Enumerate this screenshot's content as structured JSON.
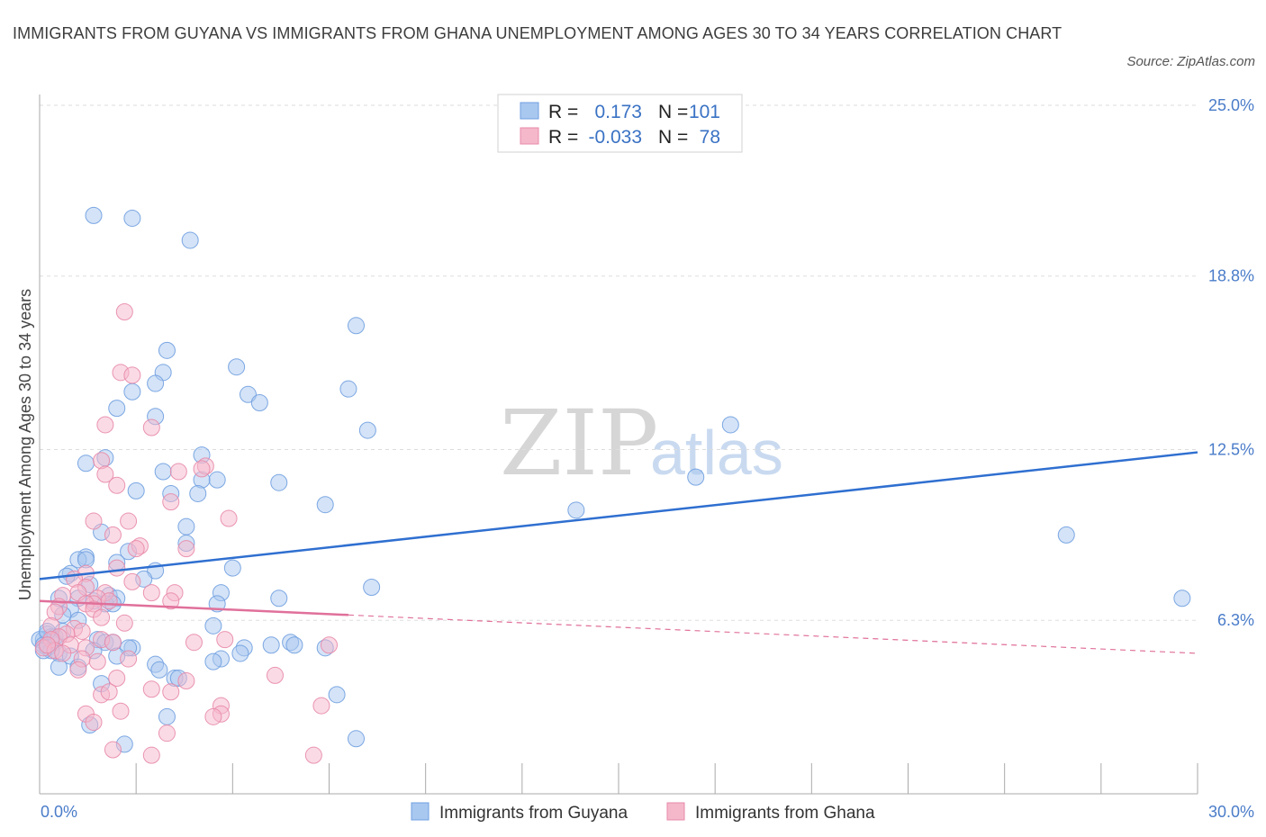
{
  "title": "IMMIGRANTS FROM GUYANA VS IMMIGRANTS FROM GHANA UNEMPLOYMENT AMONG AGES 30 TO 34 YEARS CORRELATION CHART",
  "source": "Source: ZipAtlas.com",
  "watermark": {
    "zip": "ZIP",
    "atlas": "atlas"
  },
  "legend_box": {
    "rows": [
      {
        "r_label": "R =",
        "r_value": "0.173",
        "n_label": "N =",
        "n_value": "101",
        "color": "#a9c8f0"
      },
      {
        "r_label": "R =",
        "r_value": "-0.033",
        "n_label": "N =",
        "n_value": "78",
        "color": "#f5b8cb"
      }
    ]
  },
  "chart_data": {
    "type": "scatter",
    "title": "Immigrants from Guyana vs Immigrants from Ghana Unemployment Among Ages 30 to 34 years Correlation Chart",
    "xlabel": "",
    "ylabel": "Unemployment Among Ages 30 to 34 years",
    "xlim": [
      0,
      30
    ],
    "ylim": [
      0,
      25
    ],
    "x_tick_labels": {
      "min": "0.0%",
      "max": "30.0%"
    },
    "y_ticks": [
      {
        "value": 6.3,
        "label": "6.3%"
      },
      {
        "value": 12.5,
        "label": "12.5%"
      },
      {
        "value": 18.8,
        "label": "18.8%"
      },
      {
        "value": 25.0,
        "label": "25.0%"
      }
    ],
    "grid": true,
    "legend_position": "bottom",
    "series": [
      {
        "name": "Immigrants from Guyana",
        "color": "#a9c8f0",
        "stroke": "#6f9fe0",
        "trend": {
          "x": [
            0,
            30
          ],
          "y": [
            7.8,
            12.4
          ],
          "color": "#2f6fd0",
          "solid_until": 30
        },
        "points": [
          [
            1.4,
            21.0
          ],
          [
            2.4,
            20.9
          ],
          [
            3.9,
            20.1
          ],
          [
            8.2,
            17.0
          ],
          [
            3.3,
            16.1
          ],
          [
            5.1,
            15.5
          ],
          [
            3.2,
            15.3
          ],
          [
            3.0,
            14.9
          ],
          [
            2.4,
            14.6
          ],
          [
            8.0,
            14.7
          ],
          [
            5.4,
            14.5
          ],
          [
            5.7,
            14.2
          ],
          [
            2.0,
            14.0
          ],
          [
            3.0,
            13.7
          ],
          [
            8.5,
            13.2
          ],
          [
            17.9,
            13.4
          ],
          [
            4.2,
            12.3
          ],
          [
            1.7,
            12.2
          ],
          [
            1.2,
            12.0
          ],
          [
            3.2,
            11.7
          ],
          [
            4.6,
            11.4
          ],
          [
            4.2,
            11.4
          ],
          [
            6.2,
            11.3
          ],
          [
            2.5,
            11.0
          ],
          [
            3.4,
            10.9
          ],
          [
            4.1,
            10.9
          ],
          [
            17.0,
            11.5
          ],
          [
            7.4,
            10.5
          ],
          [
            13.9,
            10.3
          ],
          [
            3.8,
            9.7
          ],
          [
            1.6,
            9.5
          ],
          [
            26.6,
            9.4
          ],
          [
            3.8,
            9.1
          ],
          [
            2.3,
            8.8
          ],
          [
            1.2,
            8.6
          ],
          [
            1.0,
            8.5
          ],
          [
            2.0,
            8.4
          ],
          [
            5.0,
            8.2
          ],
          [
            3.0,
            8.1
          ],
          [
            0.8,
            8.0
          ],
          [
            0.7,
            7.9
          ],
          [
            2.7,
            7.8
          ],
          [
            1.3,
            7.6
          ],
          [
            8.6,
            7.5
          ],
          [
            4.7,
            7.3
          ],
          [
            1.8,
            7.2
          ],
          [
            0.5,
            7.1
          ],
          [
            2.0,
            7.1
          ],
          [
            6.2,
            7.1
          ],
          [
            1.0,
            7.1
          ],
          [
            1.4,
            7.0
          ],
          [
            1.7,
            6.9
          ],
          [
            1.9,
            6.9
          ],
          [
            4.6,
            6.9
          ],
          [
            29.6,
            7.1
          ],
          [
            0.8,
            6.7
          ],
          [
            0.6,
            6.5
          ],
          [
            1.0,
            6.3
          ],
          [
            4.5,
            6.1
          ],
          [
            0.2,
            5.8
          ],
          [
            0.3,
            5.7
          ],
          [
            0.1,
            5.6
          ],
          [
            0.4,
            5.5
          ],
          [
            1.5,
            5.6
          ],
          [
            1.7,
            5.5
          ],
          [
            1.9,
            5.5
          ],
          [
            2.4,
            5.3
          ],
          [
            2.3,
            5.3
          ],
          [
            6.0,
            5.4
          ],
          [
            6.5,
            5.5
          ],
          [
            6.6,
            5.4
          ],
          [
            7.4,
            5.3
          ],
          [
            5.3,
            5.3
          ],
          [
            5.2,
            5.1
          ],
          [
            1.4,
            5.2
          ],
          [
            0.5,
            5.1
          ],
          [
            0.8,
            5.0
          ],
          [
            2.0,
            5.0
          ],
          [
            3.0,
            4.7
          ],
          [
            4.7,
            4.9
          ],
          [
            4.5,
            4.8
          ],
          [
            0.5,
            4.6
          ],
          [
            1.0,
            4.6
          ],
          [
            3.1,
            4.5
          ],
          [
            1.6,
            4.0
          ],
          [
            3.5,
            4.2
          ],
          [
            3.6,
            4.2
          ],
          [
            7.7,
            3.6
          ],
          [
            3.3,
            2.8
          ],
          [
            1.3,
            2.5
          ],
          [
            2.2,
            1.8
          ],
          [
            8.2,
            2.0
          ],
          [
            0.0,
            5.6
          ],
          [
            0.1,
            5.4
          ],
          [
            0.2,
            5.3
          ],
          [
            0.3,
            5.2
          ],
          [
            0.4,
            5.7
          ],
          [
            0.6,
            5.9
          ],
          [
            0.2,
            5.9
          ],
          [
            0.1,
            5.2
          ],
          [
            1.2,
            8.5
          ]
        ]
      },
      {
        "name": "Immigrants from Ghana",
        "color": "#f5b8cb",
        "stroke": "#e88aa8",
        "trend": {
          "x": [
            0,
            30
          ],
          "y": [
            7.0,
            5.1
          ],
          "color": "#e0709a",
          "solid_until": 8.0
        },
        "points": [
          [
            2.2,
            17.5
          ],
          [
            2.1,
            15.3
          ],
          [
            2.4,
            15.2
          ],
          [
            2.9,
            13.3
          ],
          [
            1.7,
            13.4
          ],
          [
            1.6,
            12.1
          ],
          [
            4.3,
            11.9
          ],
          [
            4.2,
            11.8
          ],
          [
            3.6,
            11.7
          ],
          [
            1.7,
            11.6
          ],
          [
            2.0,
            11.2
          ],
          [
            3.4,
            10.6
          ],
          [
            4.9,
            10.0
          ],
          [
            2.3,
            9.9
          ],
          [
            1.4,
            9.9
          ],
          [
            1.9,
            9.4
          ],
          [
            2.6,
            9.0
          ],
          [
            2.5,
            8.9
          ],
          [
            3.8,
            8.9
          ],
          [
            2.0,
            8.2
          ],
          [
            1.2,
            8.0
          ],
          [
            0.9,
            7.8
          ],
          [
            2.4,
            7.7
          ],
          [
            1.2,
            7.5
          ],
          [
            1.7,
            7.3
          ],
          [
            1.0,
            7.3
          ],
          [
            3.5,
            7.3
          ],
          [
            2.9,
            7.3
          ],
          [
            0.6,
            7.2
          ],
          [
            1.5,
            7.1
          ],
          [
            1.8,
            7.0
          ],
          [
            1.4,
            6.9
          ],
          [
            3.4,
            7.0
          ],
          [
            1.2,
            6.9
          ],
          [
            0.5,
            6.8
          ],
          [
            1.4,
            6.7
          ],
          [
            0.4,
            6.6
          ],
          [
            1.6,
            6.4
          ],
          [
            2.2,
            6.2
          ],
          [
            0.3,
            6.1
          ],
          [
            0.9,
            6.0
          ],
          [
            1.1,
            5.9
          ],
          [
            0.7,
            5.8
          ],
          [
            0.5,
            5.7
          ],
          [
            1.6,
            5.6
          ],
          [
            0.3,
            5.6
          ],
          [
            4.8,
            5.6
          ],
          [
            1.9,
            5.5
          ],
          [
            4.0,
            5.5
          ],
          [
            7.5,
            5.4
          ],
          [
            0.8,
            5.4
          ],
          [
            1.2,
            5.3
          ],
          [
            0.1,
            5.3
          ],
          [
            0.4,
            5.2
          ],
          [
            0.6,
            5.1
          ],
          [
            1.1,
            4.9
          ],
          [
            2.3,
            4.9
          ],
          [
            1.5,
            4.8
          ],
          [
            1.0,
            4.5
          ],
          [
            6.1,
            4.3
          ],
          [
            2.0,
            4.2
          ],
          [
            3.8,
            4.1
          ],
          [
            2.9,
            3.8
          ],
          [
            3.4,
            3.7
          ],
          [
            1.6,
            3.6
          ],
          [
            1.8,
            3.7
          ],
          [
            7.3,
            3.2
          ],
          [
            4.7,
            3.2
          ],
          [
            2.1,
            3.0
          ],
          [
            4.7,
            2.9
          ],
          [
            1.2,
            2.9
          ],
          [
            4.5,
            2.8
          ],
          [
            1.4,
            2.6
          ],
          [
            3.3,
            2.2
          ],
          [
            1.9,
            1.6
          ],
          [
            2.9,
            1.4
          ],
          [
            7.1,
            1.4
          ],
          [
            0.2,
            5.4
          ]
        ]
      }
    ]
  },
  "bottom_legend": {
    "items": [
      {
        "label": "Immigrants from Guyana",
        "color": "#a9c8f0",
        "stroke": "#6f9fe0"
      },
      {
        "label": "Immigrants from Ghana",
        "color": "#f5b8cb",
        "stroke": "#e88aa8"
      }
    ]
  }
}
